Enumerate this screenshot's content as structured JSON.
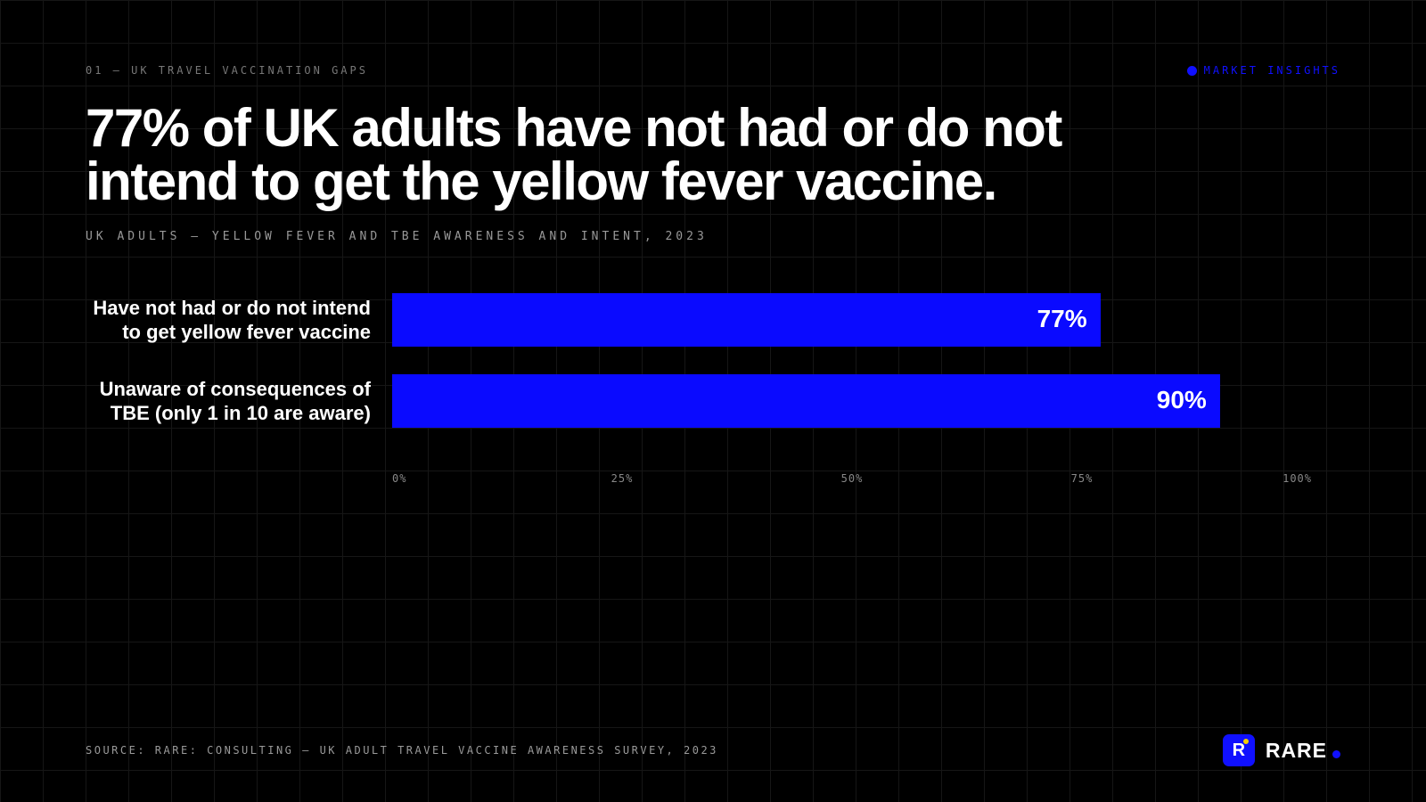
{
  "header": {
    "kicker": "01 — UK TRAVEL VACCINATION GAPS",
    "tag": "MARKET INSIGHTS"
  },
  "chart_data": {
    "type": "hbar",
    "title": "77% of UK adults have not had or do not intend to get the yellow fever vaccine.",
    "subtitle": "UK ADULTS — YELLOW FEVER AND TBE AWARENESS AND INTENT, 2023",
    "categories": [
      "Have not had or do not intend to get yellow fever vaccine",
      "Unaware of consequences of TBE (only 1 in 10 are aware)"
    ],
    "values": [
      77,
      90
    ],
    "value_labels": [
      "77%",
      "90%"
    ],
    "color": "#0a0aff",
    "xlim": [
      0,
      100
    ],
    "xticks": [
      {
        "value": 0,
        "label": "0%"
      },
      {
        "value": 25,
        "label": "25%"
      },
      {
        "value": 50,
        "label": "50%"
      },
      {
        "value": 75,
        "label": "75%"
      },
      {
        "value": 100,
        "label": "100%"
      }
    ]
  },
  "footer": {
    "source": "SOURCE: RARE: CONSULTING — UK ADULT TRAVEL VACCINE AWARENESS SURVEY, 2023",
    "brand": "RARE",
    "logo_letter": "R"
  }
}
